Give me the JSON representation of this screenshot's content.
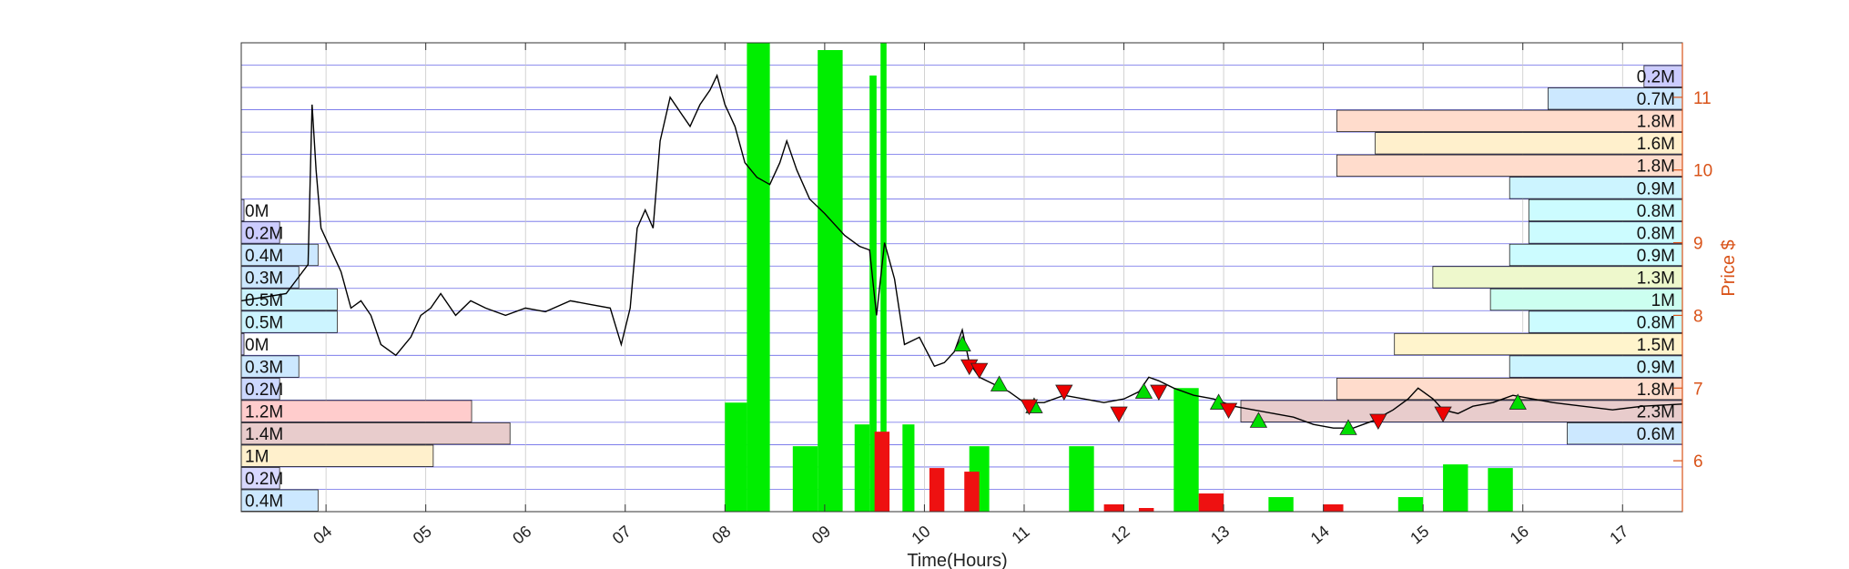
{
  "chart_data": {
    "type": "line",
    "xlabel": "Time(Hours)",
    "ylabel_right": "Price $",
    "x_ticks": [
      "04",
      "05",
      "06",
      "07",
      "08",
      "09",
      "10",
      "11",
      "12",
      "13",
      "14",
      "15",
      "16",
      "17"
    ],
    "xlim": [
      3.15,
      17.6
    ],
    "y_ticks_right": [
      6,
      7,
      8,
      9,
      10,
      11
    ],
    "ylim": [
      5.3,
      11.75
    ],
    "grid": true,
    "colors": {
      "price_line": "#000000",
      "buy_volume": "#00ee00",
      "sell_volume": "#ee1111",
      "right_axis": "#d95319",
      "grid_h": "#6a6ae8",
      "grid_v": "#c8c8c8"
    },
    "price_series": [
      [
        3.15,
        8.2
      ],
      [
        3.6,
        8.3
      ],
      [
        3.82,
        8.7
      ],
      [
        3.86,
        10.9
      ],
      [
        3.9,
        10.0
      ],
      [
        3.95,
        9.2
      ],
      [
        4.05,
        8.9
      ],
      [
        4.15,
        8.6
      ],
      [
        4.25,
        8.1
      ],
      [
        4.35,
        8.2
      ],
      [
        4.45,
        8.0
      ],
      [
        4.55,
        7.6
      ],
      [
        4.7,
        7.45
      ],
      [
        4.85,
        7.7
      ],
      [
        4.95,
        8.0
      ],
      [
        5.05,
        8.1
      ],
      [
        5.15,
        8.3
      ],
      [
        5.3,
        8.0
      ],
      [
        5.45,
        8.2
      ],
      [
        5.6,
        8.1
      ],
      [
        5.8,
        8.0
      ],
      [
        6.0,
        8.1
      ],
      [
        6.2,
        8.05
      ],
      [
        6.45,
        8.2
      ],
      [
        6.65,
        8.15
      ],
      [
        6.85,
        8.1
      ],
      [
        6.96,
        7.6
      ],
      [
        7.05,
        8.1
      ],
      [
        7.12,
        9.2
      ],
      [
        7.2,
        9.45
      ],
      [
        7.28,
        9.2
      ],
      [
        7.35,
        10.4
      ],
      [
        7.45,
        11.0
      ],
      [
        7.55,
        10.8
      ],
      [
        7.65,
        10.6
      ],
      [
        7.75,
        10.9
      ],
      [
        7.85,
        11.1
      ],
      [
        7.92,
        11.3
      ],
      [
        8.0,
        10.9
      ],
      [
        8.1,
        10.6
      ],
      [
        8.2,
        10.1
      ],
      [
        8.32,
        9.9
      ],
      [
        8.45,
        9.8
      ],
      [
        8.55,
        10.1
      ],
      [
        8.62,
        10.4
      ],
      [
        8.72,
        10.0
      ],
      [
        8.85,
        9.6
      ],
      [
        9.0,
        9.4
      ],
      [
        9.2,
        9.1
      ],
      [
        9.35,
        8.95
      ],
      [
        9.45,
        8.9
      ],
      [
        9.52,
        8.0
      ],
      [
        9.6,
        9.0
      ],
      [
        9.7,
        8.5
      ],
      [
        9.8,
        7.6
      ],
      [
        9.95,
        7.7
      ],
      [
        10.1,
        7.3
      ],
      [
        10.2,
        7.35
      ],
      [
        10.3,
        7.5
      ],
      [
        10.38,
        7.8
      ],
      [
        10.45,
        7.35
      ],
      [
        10.55,
        7.15
      ],
      [
        10.7,
        7.05
      ],
      [
        10.85,
        6.95
      ],
      [
        11.0,
        6.8
      ],
      [
        11.2,
        6.8
      ],
      [
        11.4,
        6.9
      ],
      [
        11.6,
        6.85
      ],
      [
        11.8,
        6.8
      ],
      [
        12.0,
        6.85
      ],
      [
        12.15,
        6.95
      ],
      [
        12.25,
        7.15
      ],
      [
        12.35,
        7.1
      ],
      [
        12.5,
        7.0
      ],
      [
        12.7,
        6.9
      ],
      [
        12.9,
        6.85
      ],
      [
        13.1,
        6.75
      ],
      [
        13.3,
        6.7
      ],
      [
        13.5,
        6.65
      ],
      [
        13.7,
        6.6
      ],
      [
        13.9,
        6.5
      ],
      [
        14.1,
        6.45
      ],
      [
        14.3,
        6.45
      ],
      [
        14.5,
        6.55
      ],
      [
        14.7,
        6.7
      ],
      [
        14.85,
        6.85
      ],
      [
        14.95,
        7.0
      ],
      [
        15.1,
        6.85
      ],
      [
        15.2,
        6.7
      ],
      [
        15.35,
        6.65
      ],
      [
        15.5,
        6.75
      ],
      [
        15.7,
        6.8
      ],
      [
        15.9,
        6.9
      ],
      [
        16.1,
        6.85
      ],
      [
        16.3,
        6.8
      ],
      [
        16.6,
        6.75
      ],
      [
        16.9,
        6.7
      ],
      [
        17.2,
        6.75
      ],
      [
        17.6,
        6.78
      ]
    ],
    "signal_colors": {
      "buy": "#00dd00",
      "sell": "#ee0000"
    },
    "buy_signals": [
      [
        10.38,
        7.6
      ],
      [
        10.75,
        7.05
      ],
      [
        11.1,
        6.75
      ],
      [
        12.2,
        6.95
      ],
      [
        12.95,
        6.8
      ],
      [
        13.35,
        6.55
      ],
      [
        14.25,
        6.45
      ],
      [
        15.95,
        6.8
      ]
    ],
    "sell_signals": [
      [
        10.45,
        7.3
      ],
      [
        10.55,
        7.25
      ],
      [
        11.05,
        6.75
      ],
      [
        11.4,
        6.95
      ],
      [
        11.95,
        6.65
      ],
      [
        12.35,
        6.95
      ],
      [
        13.05,
        6.7
      ],
      [
        14.55,
        6.55
      ],
      [
        15.2,
        6.65
      ]
    ],
    "volume_bars_green": [
      [
        8.0,
        8.22,
        6.8
      ],
      [
        8.22,
        8.45,
        11.75
      ],
      [
        8.68,
        8.93,
        6.2
      ],
      [
        8.93,
        9.18,
        11.65
      ],
      [
        9.3,
        9.45,
        6.5
      ],
      [
        9.45,
        9.52,
        11.3
      ],
      [
        9.56,
        9.62,
        11.75
      ],
      [
        9.78,
        9.9,
        6.5
      ],
      [
        10.45,
        10.65,
        6.2
      ],
      [
        11.45,
        11.7,
        6.2
      ],
      [
        12.5,
        12.75,
        7.0
      ],
      [
        13.45,
        13.7,
        5.5
      ],
      [
        14.75,
        15.0,
        5.5
      ],
      [
        15.2,
        15.45,
        5.95
      ],
      [
        15.65,
        15.9,
        5.9
      ]
    ],
    "volume_bars_red": [
      [
        9.5,
        9.65,
        6.4
      ],
      [
        10.05,
        10.2,
        5.9
      ],
      [
        10.4,
        10.55,
        5.85
      ],
      [
        11.8,
        12.0,
        5.4
      ],
      [
        12.15,
        12.3,
        5.35
      ],
      [
        12.75,
        13.0,
        5.55
      ],
      [
        14.0,
        14.2,
        5.4
      ]
    ],
    "volume_profile_left": {
      "labels": [
        "0M",
        "0.2M",
        "0.4M",
        "0.3M",
        "0.5M",
        "0.5M",
        "0M",
        "0.3M",
        "0.2M",
        "1.2M",
        "1.4M",
        "1M",
        "0.2M",
        "0.4M"
      ],
      "values": [
        0.01,
        0.2,
        0.4,
        0.3,
        0.5,
        0.5,
        0.01,
        0.3,
        0.2,
        1.2,
        1.4,
        1.0,
        0.2,
        0.4
      ],
      "colors": [
        "#ccccff",
        "#ccccff",
        "#cce8ff",
        "#cce8ff",
        "#ccf4ff",
        "#ccf4ff",
        "#ccccff",
        "#cce8ff",
        "#ccd8ff",
        "#ffcccc",
        "#e8cccc",
        "#fff0cc",
        "#d8d8ff",
        "#cce8ff"
      ]
    },
    "volume_profile_right": {
      "labels": [
        "0.2M",
        "0.7M",
        "1.8M",
        "1.6M",
        "1.8M",
        "0.9M",
        "0.8M",
        "0.8M",
        "0.9M",
        "1.3M",
        "1M",
        "0.8M",
        "1.5M",
        "0.9M",
        "1.8M",
        "2.3M",
        "0.6M"
      ],
      "values": [
        0.2,
        0.7,
        1.8,
        1.6,
        1.8,
        0.9,
        0.8,
        0.8,
        0.9,
        1.3,
        1.0,
        0.8,
        1.5,
        0.9,
        1.8,
        2.3,
        0.6
      ],
      "colors": [
        "#ccccff",
        "#cce8ff",
        "#ffdccc",
        "#fff0cc",
        "#ffdccc",
        "#ccf4ff",
        "#ccfcff",
        "#ccfcff",
        "#ccfcff",
        "#eef8cc",
        "#ccfff0",
        "#ccfcff",
        "#fff4cc",
        "#ccf4ff",
        "#ffdccc",
        "#e8cccc",
        "#cce8ff"
      ]
    }
  }
}
